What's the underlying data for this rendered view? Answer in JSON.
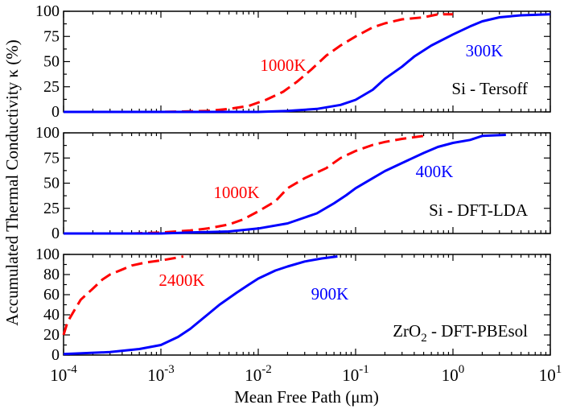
{
  "chart_data": {
    "type": "line",
    "ylabel": "Accumulated Thermal Conductivity κ (%)",
    "xlabel": "Mean Free Path (μm)",
    "xscale": "log",
    "xlim": [
      0.0001,
      10
    ],
    "x_ticks": [
      {
        "base": "10",
        "exp": "-4"
      },
      {
        "base": "10",
        "exp": "-3"
      },
      {
        "base": "10",
        "exp": "-2"
      },
      {
        "base": "10",
        "exp": "-1"
      },
      {
        "base": "10",
        "exp": "0"
      },
      {
        "base": "10",
        "exp": "1"
      }
    ],
    "colors": {
      "hot": "#ff0000",
      "cold": "#0000ff",
      "axis": "#000000"
    },
    "panels": [
      {
        "label": "Si - Tersoff",
        "ylim": [
          0,
          100
        ],
        "yticks": [
          "0",
          "25",
          "50",
          "75",
          "100"
        ],
        "series": [
          {
            "name": "1000K",
            "style": "dashed",
            "color": "#ff0000",
            "x": [
              0.0001,
              0.001,
              0.003,
              0.005,
              0.008,
              0.012,
              0.018,
              0.025,
              0.035,
              0.05,
              0.07,
              0.1,
              0.15,
              0.2,
              0.3,
              0.5,
              0.7,
              1.0
            ],
            "y": [
              0,
              0,
              1,
              3,
              6,
              12,
              20,
              30,
              42,
              56,
              66,
              75,
              84,
              88,
              92,
              94,
              97,
              97
            ]
          },
          {
            "name": "300K",
            "style": "solid",
            "color": "#0000ff",
            "x": [
              0.0001,
              0.01,
              0.02,
              0.04,
              0.07,
              0.1,
              0.15,
              0.2,
              0.3,
              0.4,
              0.6,
              1.0,
              1.5,
              2,
              3,
              5,
              10
            ],
            "y": [
              0,
              0,
              1,
              3,
              7,
              12,
              22,
              33,
              45,
              55,
              66,
              77,
              85,
              90,
              94,
              96,
              97
            ]
          }
        ]
      },
      {
        "label": "Si - DFT-LDA",
        "ylim": [
          0,
          100
        ],
        "yticks": [
          "0",
          "25",
          "50",
          "75",
          "100"
        ],
        "series": [
          {
            "name": "1000K",
            "style": "dashed",
            "color": "#ff0000",
            "x": [
              0.0001,
              0.0005,
              0.001,
              0.002,
              0.003,
              0.005,
              0.007,
              0.01,
              0.015,
              0.02,
              0.03,
              0.05,
              0.07,
              0.1,
              0.15,
              0.2,
              0.3,
              0.5
            ],
            "y": [
              0,
              0,
              1,
              3,
              5,
              9,
              14,
              22,
              32,
              45,
              55,
              65,
              75,
              82,
              88,
              91,
              94,
              97
            ]
          },
          {
            "name": "400K",
            "style": "solid",
            "color": "#0000ff",
            "x": [
              0.0001,
              0.001,
              0.002,
              0.005,
              0.01,
              0.02,
              0.04,
              0.06,
              0.08,
              0.1,
              0.15,
              0.2,
              0.3,
              0.5,
              0.7,
              1.0,
              1.5,
              2,
              3.5
            ],
            "y": [
              0,
              0,
              1,
              2,
              5,
              10,
              20,
              30,
              38,
              45,
              55,
              62,
              70,
              80,
              86,
              90,
              93,
              97,
              98
            ]
          }
        ]
      },
      {
        "label_main": "ZrO",
        "label_sub": "2",
        "label_tail": " - DFT-PBEsol",
        "ylim": [
          0,
          100
        ],
        "yticks": [
          "0",
          "20",
          "40",
          "60",
          "80",
          "100"
        ],
        "series": [
          {
            "name": "2400K",
            "style": "dashed",
            "color": "#ff0000",
            "x": [
              0.0001,
              0.00011,
              0.00013,
              0.00015,
              0.0002,
              0.00025,
              0.0003,
              0.0004,
              0.0005,
              0.0007,
              0.001,
              0.0015,
              0.0017
            ],
            "y": [
              20,
              33,
              45,
              55,
              66,
              75,
              80,
              85,
              89,
              92,
              94,
              97,
              98
            ]
          },
          {
            "name": "900K",
            "style": "solid",
            "color": "#0000ff",
            "x": [
              0.0001,
              0.0003,
              0.0006,
              0.001,
              0.0015,
              0.002,
              0.003,
              0.004,
              0.006,
              0.008,
              0.01,
              0.015,
              0.02,
              0.03,
              0.045,
              0.065
            ],
            "y": [
              1,
              3,
              6,
              10,
              18,
              26,
              40,
              50,
              62,
              70,
              76,
              84,
              88,
              93,
              96,
              98
            ]
          }
        ]
      }
    ]
  }
}
